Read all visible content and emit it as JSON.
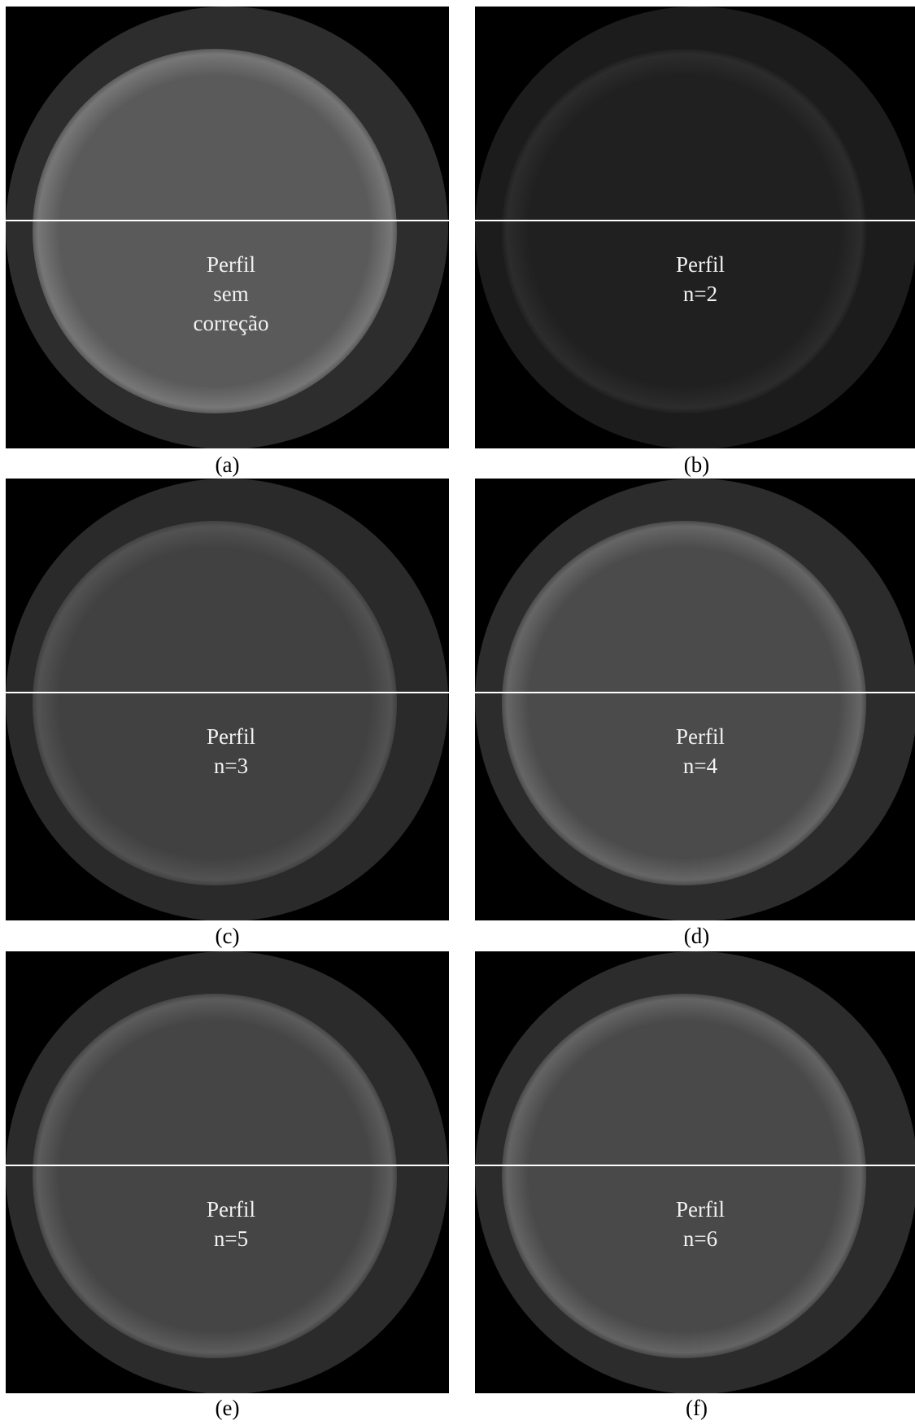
{
  "panels": [
    {
      "caption": "(a)",
      "label_lines": [
        "Perfil",
        "sem",
        "correção"
      ]
    },
    {
      "caption": "(b)",
      "label_lines": [
        "Perfil",
        "n=2"
      ]
    },
    {
      "caption": "(c)",
      "label_lines": [
        "Perfil",
        "n=3"
      ]
    },
    {
      "caption": "(d)",
      "label_lines": [
        "Perfil",
        "n=4"
      ]
    },
    {
      "caption": "(e)",
      "label_lines": [
        "Perfil",
        "n=5"
      ]
    },
    {
      "caption": "(f)",
      "label_lines": [
        "Perfil",
        "n=6"
      ]
    }
  ]
}
